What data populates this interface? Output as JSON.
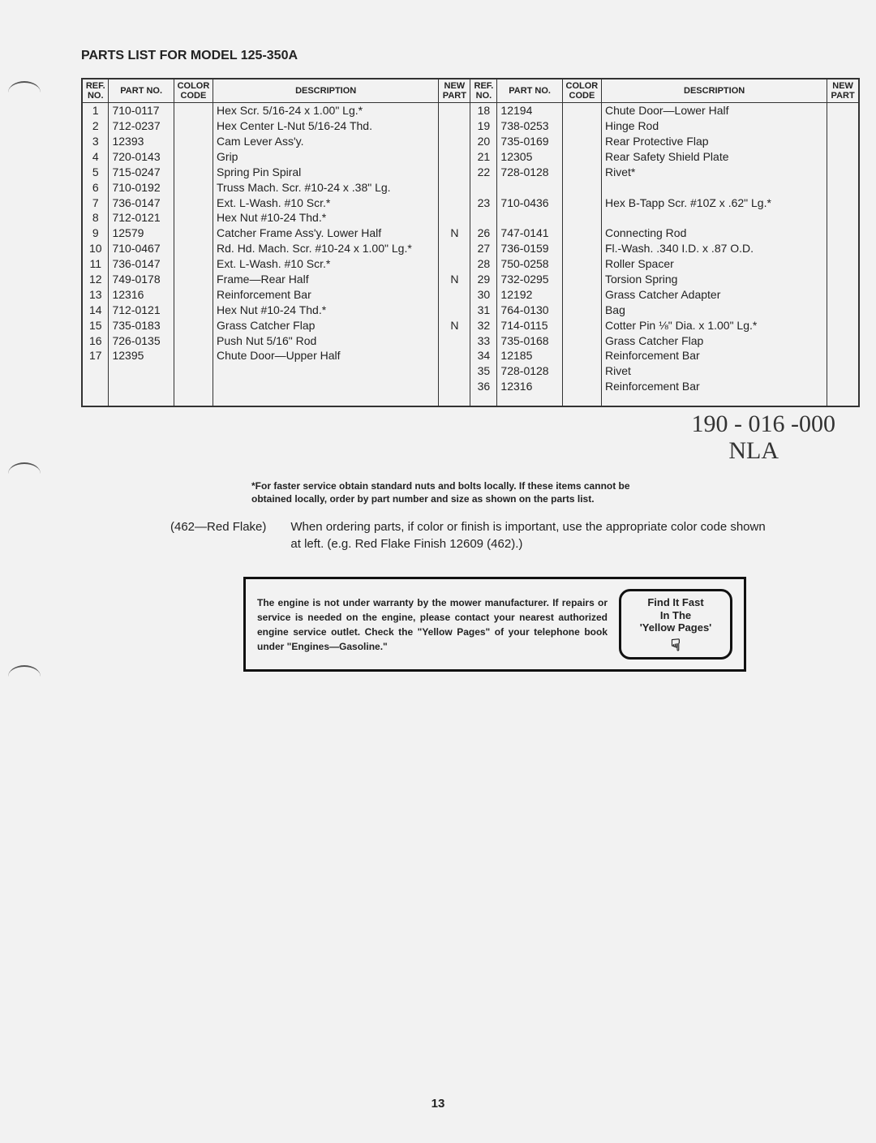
{
  "title": "PARTS LIST FOR MODEL 125-350A",
  "headers": {
    "ref": "REF.\nNO.",
    "part": "PART\nNO.",
    "color": "COLOR\nCODE",
    "desc": "DESCRIPTION",
    "new": "NEW\nPART"
  },
  "left_rows": [
    {
      "ref": "1",
      "part": "710-0117",
      "desc": "Hex Scr. 5/16-24 x 1.00\" Lg.*",
      "new": ""
    },
    {
      "ref": "2",
      "part": "712-0237",
      "desc": "Hex Center L-Nut 5/16-24 Thd.",
      "new": ""
    },
    {
      "ref": "3",
      "part": "12393",
      "desc": "Cam Lever Ass'y.",
      "new": ""
    },
    {
      "ref": "4",
      "part": "720-0143",
      "desc": "Grip",
      "new": ""
    },
    {
      "ref": "5",
      "part": "715-0247",
      "desc": "Spring Pin Spiral",
      "new": ""
    },
    {
      "ref": "6",
      "part": "710-0192",
      "desc": "Truss Mach. Scr. #10-24 x .38\" Lg.",
      "new": ""
    },
    {
      "ref": "7",
      "part": "736-0147",
      "desc": "Ext. L-Wash. #10 Scr.*",
      "new": ""
    },
    {
      "ref": "8",
      "part": "712-0121",
      "desc": "Hex Nut #10-24 Thd.*",
      "new": ""
    },
    {
      "ref": "9",
      "part": "12579",
      "desc": "Catcher Frame Ass'y. Lower Half",
      "new": "N"
    },
    {
      "ref": "10",
      "part": "710-0467",
      "desc": "Rd. Hd. Mach. Scr. #10-24 x 1.00\" Lg.*",
      "new": ""
    },
    {
      "ref": "11",
      "part": "736-0147",
      "desc": "Ext. L-Wash. #10 Scr.*",
      "new": ""
    },
    {
      "ref": "12",
      "part": "749-0178",
      "desc": "Frame—Rear Half",
      "new": "N"
    },
    {
      "ref": "13",
      "part": "12316",
      "desc": "Reinforcement Bar",
      "new": ""
    },
    {
      "ref": "14",
      "part": "712-0121",
      "desc": "Hex Nut #10-24 Thd.*",
      "new": ""
    },
    {
      "ref": "15",
      "part": "735-0183",
      "desc": "Grass Catcher Flap",
      "new": "N"
    },
    {
      "ref": "16",
      "part": "726-0135",
      "desc": "Push Nut 5/16\" Rod",
      "new": ""
    },
    {
      "ref": "17",
      "part": "12395",
      "desc": "Chute Door—Upper Half",
      "new": ""
    }
  ],
  "right_rows": [
    {
      "ref": "18",
      "part": "12194",
      "desc": "Chute Door—Lower Half",
      "new": ""
    },
    {
      "ref": "19",
      "part": "738-0253",
      "desc": "Hinge Rod",
      "new": ""
    },
    {
      "ref": "20",
      "part": "735-0169",
      "desc": "Rear Protective Flap",
      "new": ""
    },
    {
      "ref": "21",
      "part": "12305",
      "desc": "Rear Safety Shield Plate",
      "new": ""
    },
    {
      "ref": "22",
      "part": "728-0128",
      "desc": "Rivet*",
      "new": ""
    },
    {
      "ref": "",
      "part": "",
      "desc": "",
      "new": ""
    },
    {
      "ref": "23",
      "part": "710-0436",
      "desc": "Hex B-Tapp Scr. #10Z x .62\" Lg.*",
      "new": ""
    },
    {
      "ref": "",
      "part": "",
      "desc": "",
      "new": ""
    },
    {
      "ref": "26",
      "part": "747-0141",
      "desc": "Connecting Rod",
      "new": ""
    },
    {
      "ref": "27",
      "part": "736-0159",
      "desc": "Fl.-Wash. .340 I.D. x .87 O.D.",
      "new": ""
    },
    {
      "ref": "28",
      "part": "750-0258",
      "desc": "Roller Spacer",
      "new": ""
    },
    {
      "ref": "29",
      "part": "732-0295",
      "desc": "Torsion Spring",
      "new": ""
    },
    {
      "ref": "30",
      "part": "12192",
      "desc": "Grass Catcher Adapter",
      "new": ""
    },
    {
      "ref": "31",
      "part": "764-0130",
      "desc": "Bag",
      "new": ""
    },
    {
      "ref": "32",
      "part": "714-0115",
      "desc": "Cotter Pin ⅛\" Dia. x 1.00\" Lg.*",
      "new": ""
    },
    {
      "ref": "33",
      "part": "735-0168",
      "desc": "Grass Catcher Flap",
      "new": ""
    },
    {
      "ref": "34",
      "part": "12185",
      "desc": "Reinforcement Bar",
      "new": ""
    },
    {
      "ref": "35",
      "part": "728-0128",
      "desc": "Rivet",
      "new": ""
    },
    {
      "ref": "36",
      "part": "12316",
      "desc": "Reinforcement Bar",
      "new": ""
    }
  ],
  "handwritten": {
    "line1": "190 - 016 -000",
    "line2": "NLA"
  },
  "footnote": "*For faster service obtain standard nuts and bolts locally. If these items cannot be obtained locally, order by part number and size as shown on the parts list.",
  "color_code_label": "(462—Red Flake)",
  "ordering_text": "When ordering parts, if color or finish is important, use the appropriate color code shown at left. (e.g. Red Flake Finish 12609 (462).)",
  "warranty_text": "The engine is not under warranty by the mower manufacturer. If repairs or service is needed on the engine, please contact your nearest authorized engine service outlet. Check the \"Yellow Pages\" of your telephone book under \"Engines—Gasoline.\"",
  "yellow_pages": {
    "line1": "Find It Fast",
    "line2": "In The",
    "line3": "'Yellow Pages'"
  },
  "page_number": "13"
}
